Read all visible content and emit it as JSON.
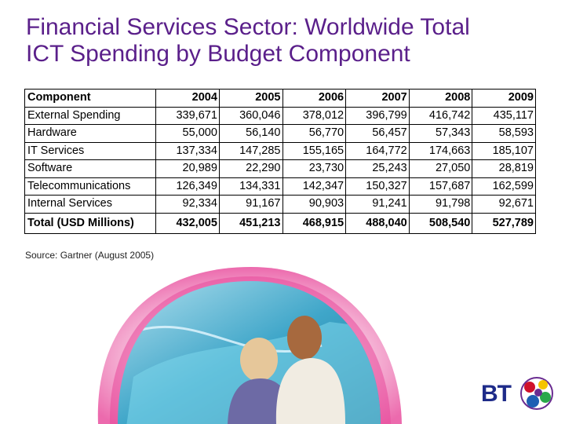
{
  "slide": {
    "title_line1": "Financial Services Sector: Worldwide Total",
    "title_line2": "ICT Spending by Budget Component",
    "source": "Source: Gartner (August 2005)"
  },
  "table": {
    "headers": [
      "Component",
      "2004",
      "2005",
      "2006",
      "2007",
      "2008",
      "2009"
    ],
    "rows": [
      [
        "External Spending",
        "339,671",
        "360,046",
        "378,012",
        "396,799",
        "416,742",
        "435,117"
      ],
      [
        "Hardware",
        "55,000",
        "56,140",
        "56,770",
        "56,457",
        "57,343",
        "58,593"
      ],
      [
        "IT Services",
        "137,334",
        "147,285",
        "155,165",
        "164,772",
        "174,663",
        "185,107"
      ],
      [
        "Software",
        "20,989",
        "22,290",
        "23,730",
        "25,243",
        "27,050",
        "28,819"
      ],
      [
        "Telecommunications",
        "126,349",
        "134,331",
        "142,347",
        "150,327",
        "157,687",
        "162,599"
      ],
      [
        "Internal Services",
        "92,334",
        "91,167",
        "90,903",
        "91,241",
        "91,798",
        "92,671"
      ],
      [
        "Total (USD Millions)",
        "432,005",
        "451,213",
        "468,915",
        "488,040",
        "508,540",
        "527,789"
      ]
    ]
  },
  "logo": {
    "text": "BT",
    "colors": {
      "brand": "#1e2b89",
      "accent_purple": "#6a2c91",
      "accent_red": "#d0112b",
      "accent_yellow": "#f5c400",
      "accent_green": "#2aa84a"
    }
  },
  "theme": {
    "title_color": "#5a1f8a",
    "swoosh_pink": "#e8489a",
    "swoosh_light": "#f7c6df"
  }
}
